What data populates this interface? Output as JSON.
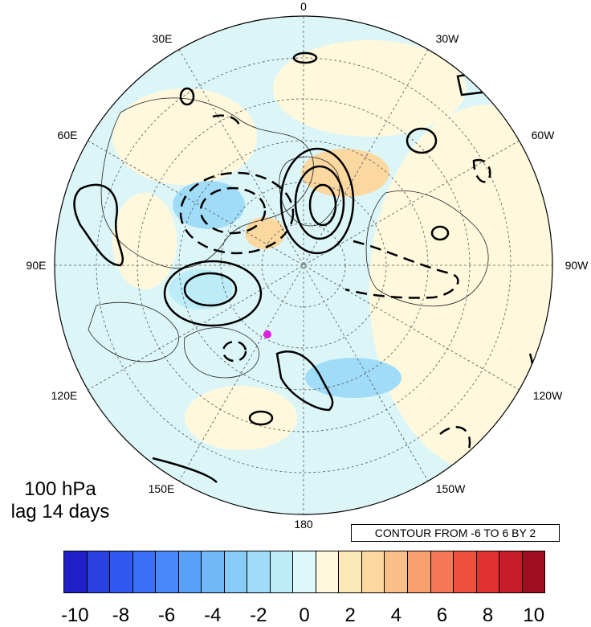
{
  "map": {
    "projection": "north-polar-stereographic",
    "lon_labels": [
      "0",
      "30W",
      "60W",
      "90W",
      "120W",
      "150W",
      "180",
      "150E",
      "120E",
      "90E",
      "60E",
      "30E"
    ],
    "marker_color": "#e020e0",
    "contour_color": "#000000"
  },
  "title": {
    "line1": "100 hPa",
    "line2": "lag 14 days"
  },
  "contour_note": "CONTOUR FROM -6 TO 6 BY 2",
  "colorbar": {
    "colors": [
      "#2020c8",
      "#2840e0",
      "#3058f0",
      "#3a70f8",
      "#4888f8",
      "#58a0f8",
      "#70b8f8",
      "#88ccf8",
      "#a0dcf8",
      "#bcecf8",
      "#dcf8f8",
      "#fff8dc",
      "#fde8b8",
      "#fbd8a0",
      "#f8c088",
      "#f8a070",
      "#f47858",
      "#ee5040",
      "#e03030",
      "#c81c28",
      "#a00c20"
    ],
    "labels": [
      "-10",
      "-8",
      "-6",
      "-4",
      "-2",
      "0",
      "2",
      "4",
      "6",
      "8",
      "10"
    ]
  }
}
